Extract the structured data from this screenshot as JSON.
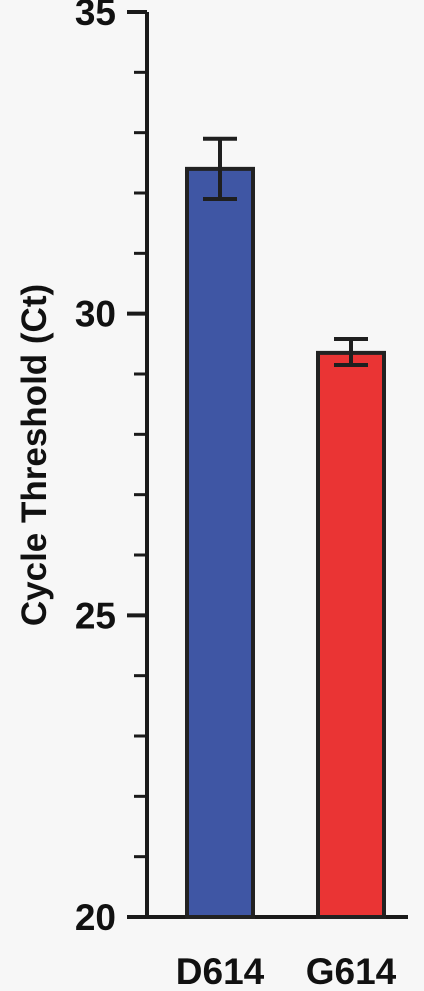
{
  "chart_data": {
    "type": "bar",
    "categories": [
      "D614",
      "G614"
    ],
    "values": [
      32.4,
      29.35
    ],
    "error_lower": [
      31.9,
      29.15
    ],
    "error_upper": [
      32.9,
      29.58
    ],
    "ylabel": "Cycle Threshold (Ct)",
    "ylim": [
      20,
      35
    ],
    "yticks": [
      "20",
      "25",
      "30",
      "35"
    ],
    "minor_tick_step": 1,
    "grid": false,
    "colors": {
      "D614": "#3f56a4",
      "G614": "#ea3434",
      "axis": "#1a1a1a",
      "background": "#f7f7f7"
    }
  }
}
